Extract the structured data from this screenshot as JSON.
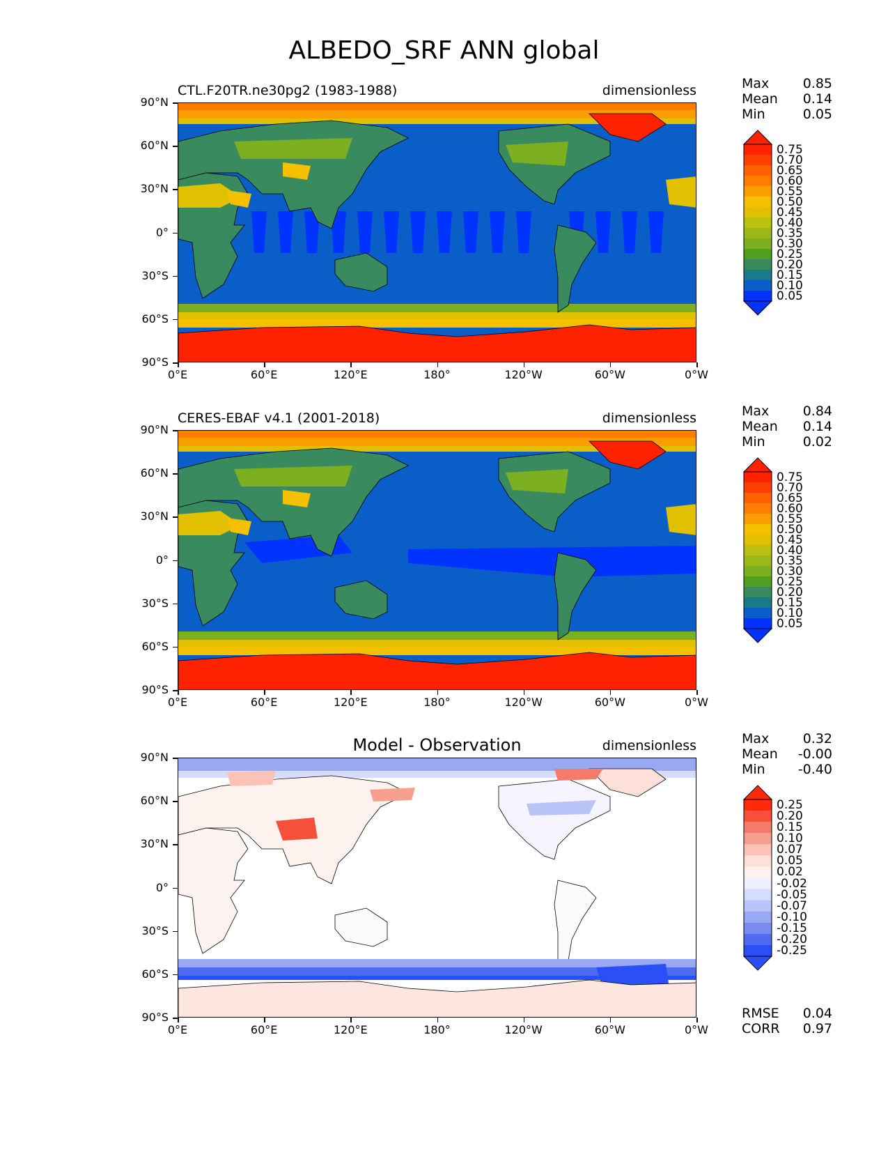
{
  "figure": {
    "title": "ALBEDO_SRF ANN global"
  },
  "axes": {
    "lat_ticks": [
      "90°N",
      "60°N",
      "30°N",
      "0°",
      "30°S",
      "60°S",
      "90°S"
    ],
    "lon_ticks": [
      "0°E",
      "60°E",
      "120°E",
      "180°",
      "120°W",
      "60°W",
      "0°W"
    ]
  },
  "panels": [
    {
      "title": "CTL.F20TR.ne30pg2 (1983-1988)",
      "units": "dimensionless",
      "stats": [
        {
          "label": "Max",
          "value": "0.85"
        },
        {
          "label": "Mean",
          "value": "0.14"
        },
        {
          "label": "Min",
          "value": "0.05"
        }
      ],
      "colorbar_labels": [
        "0.75",
        "0.70",
        "0.65",
        "0.60",
        "0.55",
        "0.50",
        "0.45",
        "0.40",
        "0.35",
        "0.30",
        "0.25",
        "0.20",
        "0.15",
        "0.10",
        "0.05"
      ]
    },
    {
      "title": "CERES-EBAF v4.1 (2001-2018)",
      "units": "dimensionless",
      "stats": [
        {
          "label": "Max",
          "value": "0.84"
        },
        {
          "label": "Mean",
          "value": "0.14"
        },
        {
          "label": "Min",
          "value": "0.02"
        }
      ],
      "colorbar_labels": [
        "0.75",
        "0.70",
        "0.65",
        "0.60",
        "0.55",
        "0.50",
        "0.45",
        "0.40",
        "0.35",
        "0.30",
        "0.25",
        "0.20",
        "0.15",
        "0.10",
        "0.05"
      ]
    },
    {
      "title": "Model - Observation",
      "units": "dimensionless",
      "stats": [
        {
          "label": "Max",
          "value": "0.32"
        },
        {
          "label": "Mean",
          "value": "-0.00"
        },
        {
          "label": "Min",
          "value": "-0.40"
        }
      ],
      "colorbar_labels": [
        "0.25",
        "0.20",
        "0.15",
        "0.10",
        "0.07",
        "0.05",
        "0.02",
        "-0.02",
        "-0.05",
        "-0.07",
        "-0.10",
        "-0.15",
        "-0.20",
        "-0.25"
      ],
      "footer_stats": [
        {
          "label": "RMSE",
          "value": "0.04"
        },
        {
          "label": "CORR",
          "value": "0.97"
        }
      ]
    }
  ],
  "colors": {
    "abs_scale": [
      "#ff2200",
      "#ff3f00",
      "#ff6000",
      "#ff7e00",
      "#f99d00",
      "#f5c000",
      "#e0c000",
      "#bcc010",
      "#9cb818",
      "#7cb020",
      "#4fa020",
      "#3a8a60",
      "#1a7a8a",
      "#0a5ec8",
      "#0033ff"
    ],
    "diff_scale": [
      "#ff2a0a",
      "#f5503a",
      "#f57a6a",
      "#f8a090",
      "#fbc2b5",
      "#fde0d8",
      "#fff2ee",
      "#eef0fe",
      "#d6dcfb",
      "#b9c4f8",
      "#98a8f3",
      "#7a8cee",
      "#4f6cf0",
      "#2a50f5"
    ]
  }
}
